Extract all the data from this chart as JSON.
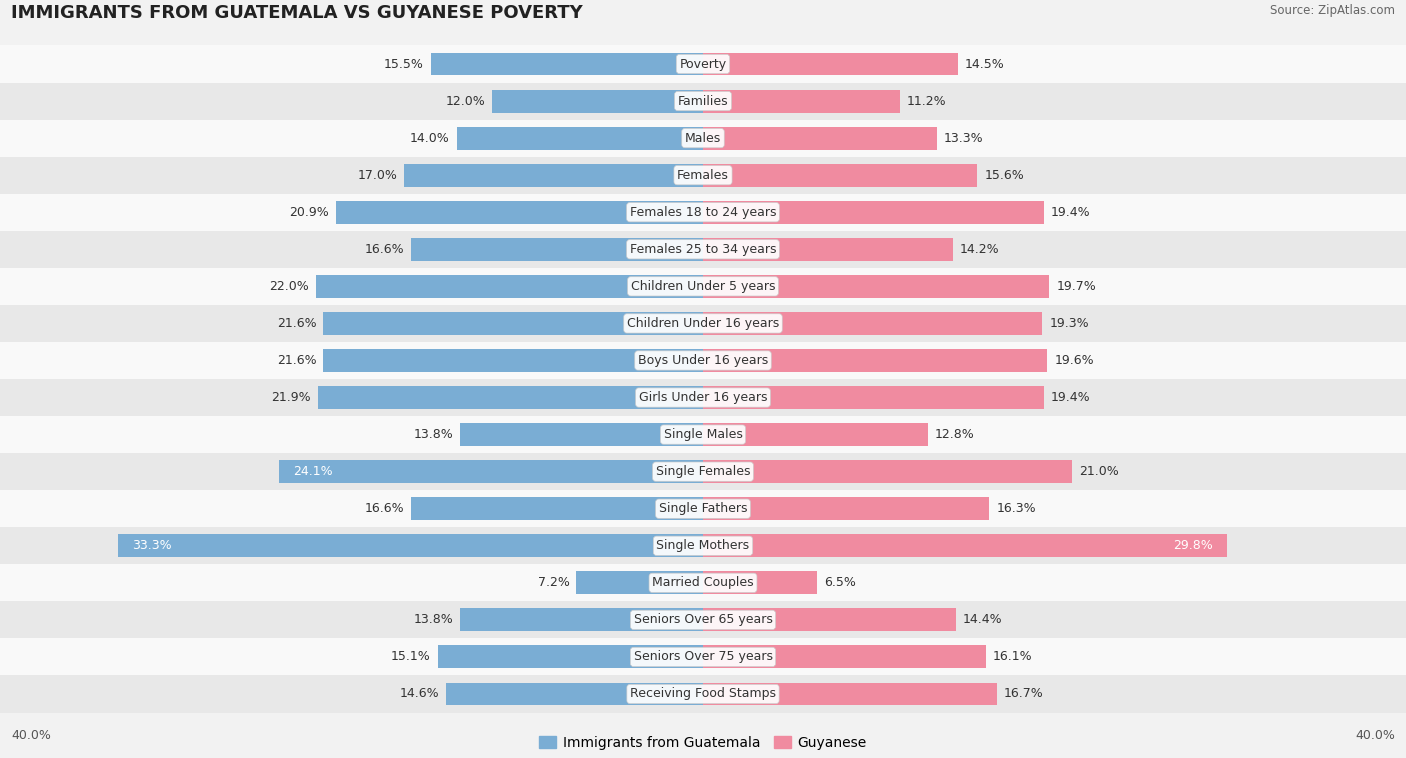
{
  "title": "IMMIGRANTS FROM GUATEMALA VS GUYANESE POVERTY",
  "source": "Source: ZipAtlas.com",
  "categories": [
    "Poverty",
    "Families",
    "Males",
    "Females",
    "Females 18 to 24 years",
    "Females 25 to 34 years",
    "Children Under 5 years",
    "Children Under 16 years",
    "Boys Under 16 years",
    "Girls Under 16 years",
    "Single Males",
    "Single Females",
    "Single Fathers",
    "Single Mothers",
    "Married Couples",
    "Seniors Over 65 years",
    "Seniors Over 75 years",
    "Receiving Food Stamps"
  ],
  "guatemala_values": [
    15.5,
    12.0,
    14.0,
    17.0,
    20.9,
    16.6,
    22.0,
    21.6,
    21.6,
    21.9,
    13.8,
    24.1,
    16.6,
    33.3,
    7.2,
    13.8,
    15.1,
    14.6
  ],
  "guyanese_values": [
    14.5,
    11.2,
    13.3,
    15.6,
    19.4,
    14.2,
    19.7,
    19.3,
    19.6,
    19.4,
    12.8,
    21.0,
    16.3,
    29.8,
    6.5,
    14.4,
    16.1,
    16.7
  ],
  "guatemala_color": "#7aadd4",
  "guyanese_color": "#f08ba0",
  "bar_height": 0.62,
  "xlim": 40.0,
  "bg_color": "#f2f2f2",
  "row_bg_even": "#f9f9f9",
  "row_bg_odd": "#e8e8e8",
  "label_color_normal": "#333333",
  "highlight_rows_blue": [
    11,
    13
  ],
  "highlight_rows_pink": [
    13
  ],
  "axis_label_left": "40.0%",
  "axis_label_right": "40.0%",
  "legend_label_left": "Immigrants from Guatemala",
  "legend_label_right": "Guyanese",
  "title_fontsize": 13,
  "label_fontsize": 9,
  "value_fontsize": 9
}
